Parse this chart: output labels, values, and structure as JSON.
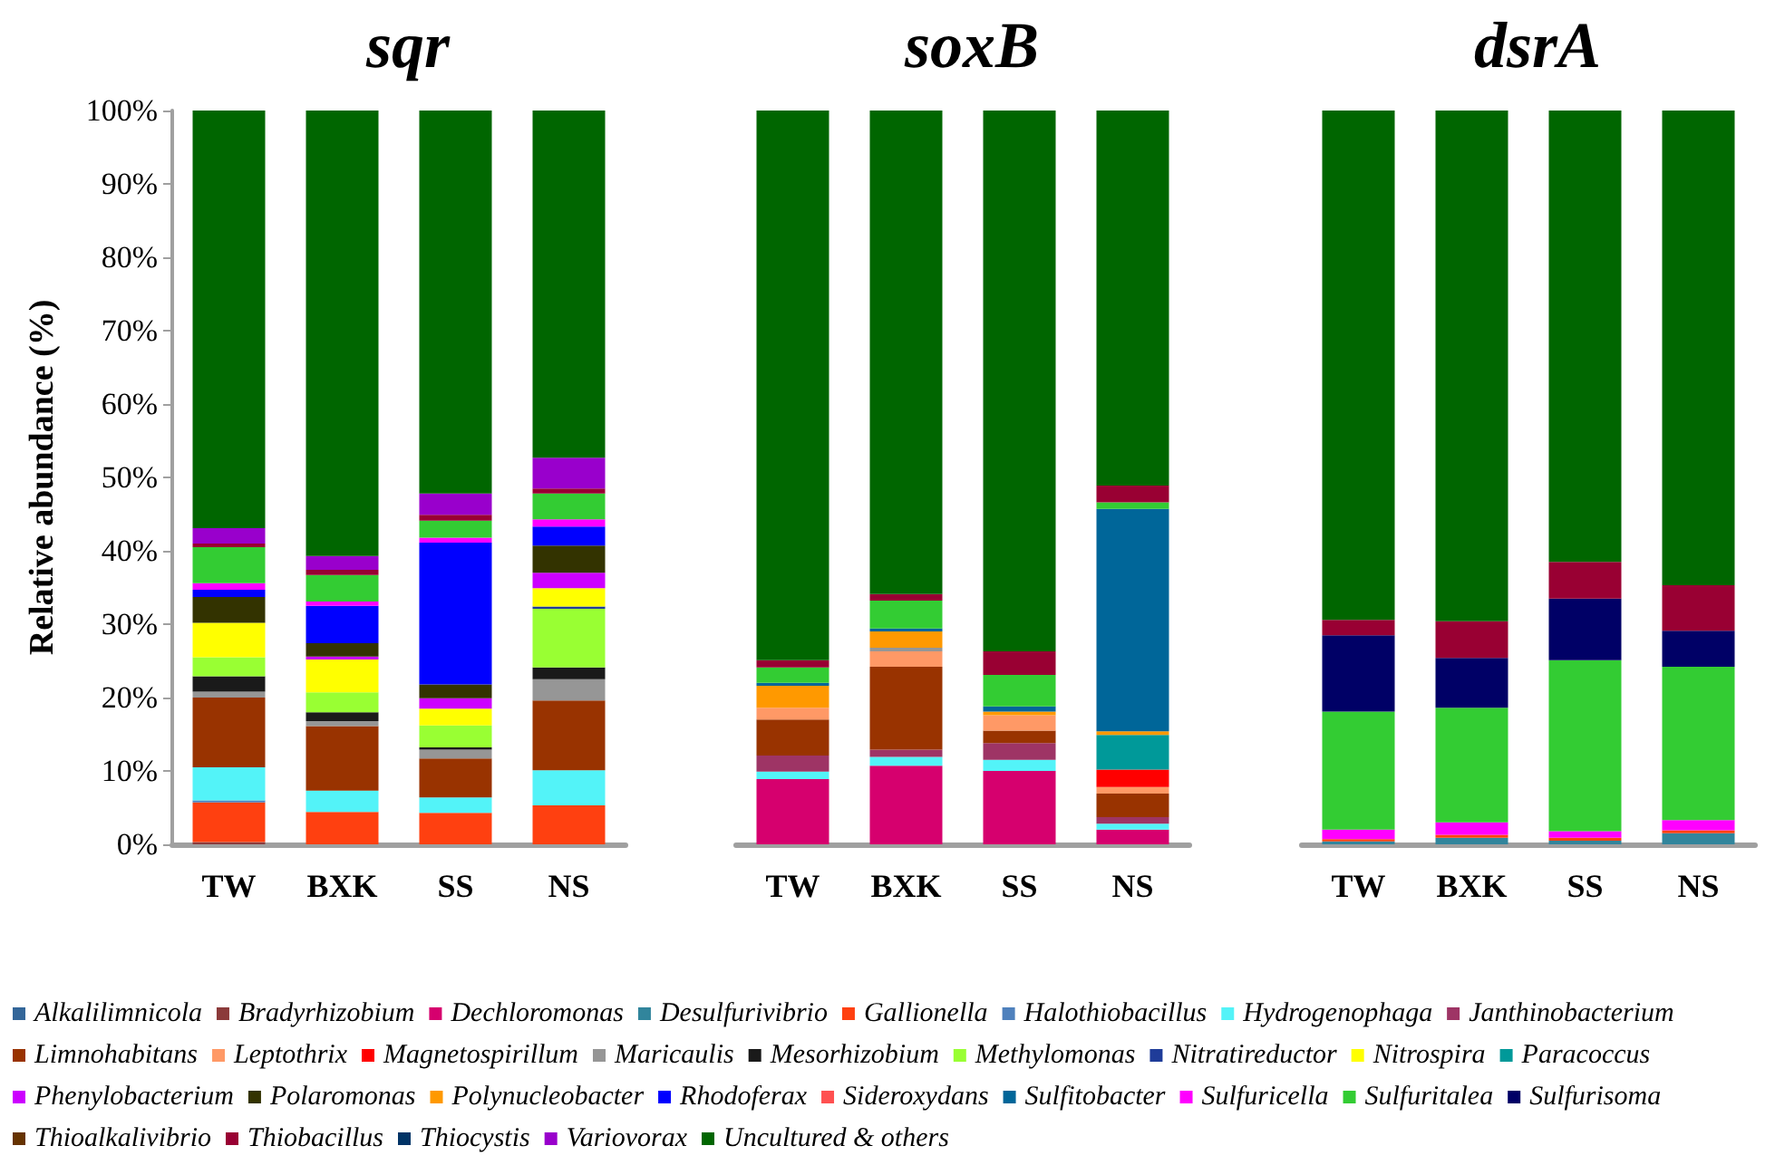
{
  "chart_data": [
    {
      "type": "bar",
      "title": "sqr",
      "ylabel": "Relative abundance (%)",
      "categories": [
        "TW",
        "BXK",
        "SS",
        "NS"
      ],
      "stacked": true,
      "ylim": [
        0,
        100
      ],
      "yticks": [
        {
          "value": 0,
          "label": "0%"
        },
        {
          "value": 10,
          "label": "10%"
        },
        {
          "value": 20,
          "label": "20%"
        },
        {
          "value": 30,
          "label": "30%"
        },
        {
          "value": 40,
          "label": "40%"
        },
        {
          "value": 50,
          "label": "50%"
        },
        {
          "value": 60,
          "label": "60%"
        },
        {
          "value": 70,
          "label": "70%"
        },
        {
          "value": 80,
          "label": "80%"
        },
        {
          "value": 90,
          "label": "90%"
        },
        {
          "value": 100,
          "label": "100%"
        }
      ],
      "legend": "bottom",
      "series": [
        {
          "name": "Alkalilimnicola",
          "color": "#336699",
          "values": [
            0,
            0,
            0,
            0
          ]
        },
        {
          "name": "Bradyrhizobium",
          "color": "#8b3a3a",
          "values": [
            0.3,
            0,
            0,
            0
          ]
        },
        {
          "name": "Dechloromonas",
          "color": "#d6006e",
          "values": [
            0,
            0,
            0,
            0
          ]
        },
        {
          "name": "Desulfurivibrio",
          "color": "#31859c",
          "values": [
            0,
            0,
            0,
            0
          ]
        },
        {
          "name": "Gallionella",
          "color": "#ff4010",
          "values": [
            5.4,
            4.4,
            4.3,
            5.3
          ]
        },
        {
          "name": "Halothiobacillus",
          "color": "#4f81bd",
          "values": [
            0.3,
            0,
            0,
            0
          ]
        },
        {
          "name": "Hydrogenophaga",
          "color": "#53f3f8",
          "values": [
            4.5,
            2.9,
            2.1,
            4.8
          ]
        },
        {
          "name": "Janthinobacterium",
          "color": "#9e3465",
          "values": [
            0,
            0,
            0,
            0
          ]
        },
        {
          "name": "Limnohabitans",
          "color": "#993300",
          "values": [
            9.5,
            8.8,
            5.3,
            9.5
          ]
        },
        {
          "name": "Leptothrix",
          "color": "#ff9966",
          "values": [
            0,
            0,
            0,
            0
          ]
        },
        {
          "name": "Magnetospirillum",
          "color": "#ff0000",
          "values": [
            0,
            0,
            0,
            0
          ]
        },
        {
          "name": "Maricaulis",
          "color": "#969696",
          "values": [
            0.8,
            0.7,
            1.2,
            2.9
          ]
        },
        {
          "name": "Mesorhizobium",
          "color": "#1a1a1a",
          "values": [
            2.1,
            1.2,
            0.3,
            1.6
          ]
        },
        {
          "name": "Methylomonas",
          "color": "#99ff33",
          "values": [
            2.6,
            2.7,
            3.0,
            8.0
          ]
        },
        {
          "name": "Nitratireductor",
          "color": "#1f3c99",
          "values": [
            0,
            0,
            0,
            0.3
          ]
        },
        {
          "name": "Nitrospira",
          "color": "#ffff00",
          "values": [
            4.7,
            4.5,
            2.3,
            2.5
          ]
        },
        {
          "name": "Paracoccus",
          "color": "#009999",
          "values": [
            0,
            0,
            0,
            0
          ]
        },
        {
          "name": "Phenylobacterium",
          "color": "#cc00ff",
          "values": [
            0,
            0.4,
            1.4,
            2.1
          ]
        },
        {
          "name": "Polaromonas",
          "color": "#333300",
          "values": [
            3.5,
            1.8,
            1.9,
            3.7
          ]
        },
        {
          "name": "Polynucleobacter",
          "color": "#ff9900",
          "values": [
            0,
            0,
            0,
            0
          ]
        },
        {
          "name": "Rhodoferax",
          "color": "#0000ff",
          "values": [
            1.0,
            5.1,
            19.3,
            2.6
          ]
        },
        {
          "name": "Sideroxydans",
          "color": "#ff5050",
          "values": [
            0,
            0,
            0,
            0
          ]
        },
        {
          "name": "Sulfitobacter",
          "color": "#006699",
          "values": [
            0,
            0,
            0,
            0
          ]
        },
        {
          "name": "Sulfuricella",
          "color": "#ff00ff",
          "values": [
            0.9,
            0.6,
            0.7,
            1.0
          ]
        },
        {
          "name": "Sulfuritalea",
          "color": "#33cc33",
          "values": [
            4.9,
            3.6,
            2.3,
            3.5
          ]
        },
        {
          "name": "Sulfurisoma",
          "color": "#000066",
          "values": [
            0,
            0,
            0,
            0
          ]
        },
        {
          "name": "Thioalkalivibrio",
          "color": "#663300",
          "values": [
            0,
            0,
            0,
            0
          ]
        },
        {
          "name": "Thiobacillus",
          "color": "#990033",
          "values": [
            0.5,
            0.7,
            0.8,
            0.7
          ]
        },
        {
          "name": "Thiocystis",
          "color": "#003366",
          "values": [
            0,
            0,
            0,
            0
          ]
        },
        {
          "name": "Variovorax",
          "color": "#9900cc",
          "values": [
            2.1,
            1.9,
            2.9,
            4.2
          ]
        },
        {
          "name": "Uncultured & others",
          "color": "#006600",
          "values": [
            56.9,
            60.7,
            52.2,
            47.3
          ]
        }
      ]
    },
    {
      "type": "bar",
      "title": "soxB",
      "categories": [
        "TW",
        "BXK",
        "SS",
        "NS"
      ],
      "stacked": true,
      "ylim": [
        0,
        100
      ],
      "tick_labels": "x",
      "series": [
        {
          "color": "#d6006e",
          "values": [
            8.9,
            10.7,
            10.0,
            2.0
          ]
        },
        {
          "color": "#53f3f8",
          "values": [
            1.0,
            1.2,
            1.5,
            0.8
          ]
        },
        {
          "color": "#9e3465",
          "values": [
            2.2,
            1.0,
            2.3,
            0.9
          ]
        },
        {
          "color": "#993300",
          "values": [
            4.9,
            11.3,
            1.7,
            3.2
          ]
        },
        {
          "color": "#ff9966",
          "values": [
            1.6,
            2.1,
            2.1,
            0.9
          ]
        },
        {
          "color": "#ff0000",
          "values": [
            0,
            0,
            0,
            2.4
          ]
        },
        {
          "color": "#969696",
          "values": [
            0,
            0.5,
            0,
            0
          ]
        },
        {
          "color": "#009999",
          "values": [
            0,
            0,
            0,
            4.7
          ]
        },
        {
          "color": "#ff9900",
          "values": [
            3.0,
            2.2,
            0.5,
            0.5
          ]
        },
        {
          "color": "#006699",
          "values": [
            0.4,
            0.4,
            0.7,
            30.3
          ]
        },
        {
          "color": "#33cc33",
          "values": [
            2.1,
            3.8,
            4.3,
            0.9
          ]
        },
        {
          "color": "#990033",
          "values": [
            1.0,
            0.9,
            3.2,
            2.3
          ]
        },
        {
          "color": "#006600",
          "values": [
            74.9,
            65.9,
            73.7,
            51.1
          ]
        }
      ]
    },
    {
      "type": "bar",
      "title": "dsrA",
      "categories": [
        "TW",
        "BXK",
        "SS",
        "NS"
      ],
      "stacked": true,
      "ylim": [
        0,
        100
      ],
      "tick_labels": "x",
      "series": [
        {
          "color": "#31859c",
          "values": [
            0.4,
            0.9,
            0.5,
            1.5
          ]
        },
        {
          "color": "#ff4010",
          "values": [
            0.3,
            0.4,
            0.4,
            0.4
          ]
        },
        {
          "color": "#ff00ff",
          "values": [
            1.3,
            1.7,
            0.9,
            1.4
          ]
        },
        {
          "color": "#33cc33",
          "values": [
            16.1,
            15.6,
            23.3,
            20.9
          ]
        },
        {
          "color": "#000066",
          "values": [
            10.4,
            6.8,
            8.4,
            4.9
          ]
        },
        {
          "color": "#990033",
          "values": [
            2.1,
            5.0,
            5.0,
            6.2
          ]
        },
        {
          "color": "#006600",
          "values": [
            69.4,
            69.6,
            61.5,
            64.7
          ]
        }
      ]
    }
  ]
}
